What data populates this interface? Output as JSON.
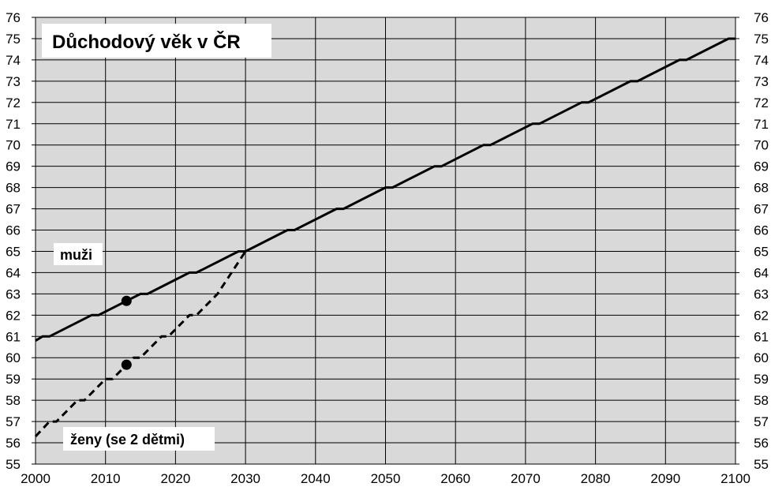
{
  "chart_data": {
    "type": "line",
    "title": "Důchodový věk v ČR",
    "xlabel": "",
    "ylabel": "",
    "xlim": [
      2000,
      2100
    ],
    "ylim": [
      55,
      76
    ],
    "x_ticks": [
      2000,
      2010,
      2020,
      2030,
      2040,
      2050,
      2060,
      2070,
      2080,
      2090,
      2100
    ],
    "y_ticks": [
      55,
      56,
      57,
      58,
      59,
      60,
      61,
      62,
      63,
      64,
      65,
      66,
      67,
      68,
      69,
      70,
      71,
      72,
      73,
      74,
      75,
      76
    ],
    "y_axis_right": true,
    "grid": true,
    "plot_background": "#d9d9d9",
    "series": [
      {
        "name": "muži",
        "style": "solid",
        "color": "#000000",
        "x": [
          2000,
          2001,
          2002,
          2008,
          2009,
          2015,
          2016,
          2022,
          2023,
          2029,
          2030,
          2036,
          2037,
          2043,
          2044,
          2050,
          2051,
          2057,
          2058,
          2064,
          2065,
          2071,
          2072,
          2078,
          2079,
          2085,
          2086,
          2092,
          2093,
          2099,
          2100
        ],
        "values": [
          60.8,
          61,
          61,
          62,
          62,
          63,
          63,
          64,
          64,
          65,
          65,
          66,
          66,
          67,
          67,
          68,
          68,
          69,
          69,
          70,
          70,
          71,
          71,
          72,
          72,
          73,
          73,
          74,
          74,
          75,
          75
        ],
        "marker": {
          "x": 2013,
          "value": 62.67
        }
      },
      {
        "name": "ženy (se 2 dětmi)",
        "style": "dashed",
        "color": "#000000",
        "x": [
          2000,
          2002,
          2003,
          2006,
          2007,
          2010,
          2011,
          2014,
          2015,
          2018,
          2019,
          2022,
          2023,
          2026,
          2027,
          2030
        ],
        "values": [
          56.3,
          57,
          57,
          58,
          58,
          59,
          59,
          60,
          60,
          61,
          61,
          62,
          62,
          63,
          63.5,
          65
        ],
        "marker": {
          "x": 2013,
          "value": 59.67
        }
      }
    ]
  }
}
